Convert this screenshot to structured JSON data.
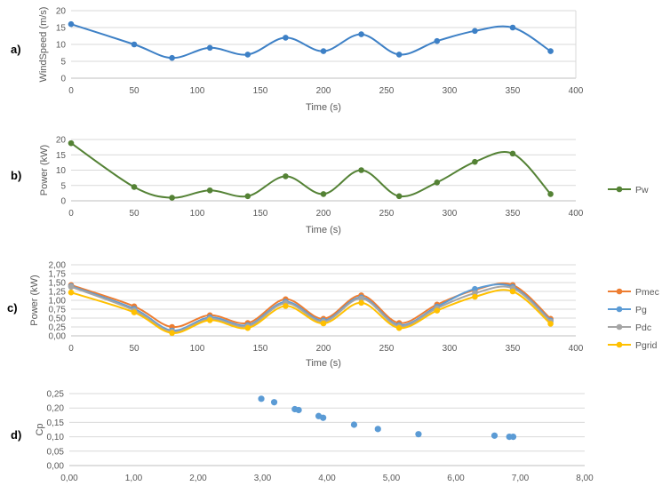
{
  "panel_labels": [
    "a)",
    "b)",
    "c)",
    "d)"
  ],
  "colors": {
    "blue": "#3d80c6",
    "green": "#548235",
    "orange": "#ed7d31",
    "lightblue": "#5b9bd5",
    "gray": "#a5a5a5",
    "yellow": "#ffc000",
    "grid": "#d9d9d9",
    "axis": "#bfbfbf",
    "text": "#595959"
  },
  "chart_data": [
    {
      "type": "line",
      "ylabel": "WindSpeed (m/s)",
      "xlabel": "Time (s)",
      "xlim": [
        0,
        400
      ],
      "ylim": [
        0,
        20
      ],
      "x_ticks": [
        "0",
        "50",
        "100",
        "150",
        "200",
        "250",
        "300",
        "350",
        "400"
      ],
      "y_ticks": [
        "0",
        "5",
        "10",
        "15",
        "20"
      ],
      "grid": true,
      "smooth": true,
      "x": [
        0,
        50,
        80,
        110,
        140,
        170,
        200,
        230,
        260,
        290,
        320,
        350,
        380
      ],
      "series": [
        {
          "values": [
            16,
            10,
            6,
            9,
            7,
            12,
            8,
            13,
            7,
            11,
            14,
            15,
            8
          ],
          "color": "#3d80c6"
        }
      ]
    },
    {
      "type": "line",
      "ylabel": "Power (kW)",
      "xlabel": "Time (s)",
      "xlim": [
        0,
        400
      ],
      "ylim": [
        0,
        20
      ],
      "x_ticks": [
        "0",
        "50",
        "100",
        "150",
        "200",
        "250",
        "300",
        "350",
        "400"
      ],
      "y_ticks": [
        "0",
        "5",
        "10",
        "15",
        "20"
      ],
      "grid": true,
      "smooth": true,
      "legend": "right",
      "x": [
        0,
        50,
        80,
        110,
        140,
        170,
        200,
        230,
        260,
        290,
        320,
        350,
        380
      ],
      "series": [
        {
          "name": "Pw",
          "values": [
            18.8,
            4.5,
            1.0,
            3.4,
            1.5,
            8.0,
            2.2,
            10.0,
            1.5,
            6.0,
            12.7,
            15.4,
            2.2
          ],
          "color": "#548235"
        }
      ]
    },
    {
      "type": "line",
      "ylabel": "Power (kW)",
      "xlabel": "Time (s)",
      "xlim": [
        0,
        400
      ],
      "ylim": [
        0,
        2
      ],
      "x_ticks": [
        "0",
        "50",
        "100",
        "150",
        "200",
        "250",
        "300",
        "350",
        "400"
      ],
      "y_ticks": [
        "0,00",
        "0,25",
        "0,50",
        "0,75",
        "1,00",
        "1,25",
        "1,50",
        "1,75",
        "2,00"
      ],
      "grid": true,
      "smooth": true,
      "legend": "right",
      "x": [
        0,
        50,
        80,
        110,
        140,
        170,
        200,
        230,
        260,
        290,
        320,
        350,
        380
      ],
      "series": [
        {
          "name": "Pmec",
          "values": [
            1.43,
            0.83,
            0.25,
            0.58,
            0.36,
            1.03,
            0.48,
            1.14,
            0.36,
            0.88,
            1.29,
            1.43,
            0.48
          ],
          "color": "#ed7d31"
        },
        {
          "name": "Pg",
          "values": [
            1.4,
            0.76,
            0.15,
            0.52,
            0.3,
            0.96,
            0.43,
            1.08,
            0.3,
            0.82,
            1.32,
            1.38,
            0.43
          ],
          "color": "#5b9bd5"
        },
        {
          "name": "Pdc",
          "values": [
            1.38,
            0.72,
            0.12,
            0.48,
            0.27,
            0.92,
            0.4,
            1.05,
            0.27,
            0.78,
            1.2,
            1.34,
            0.4
          ],
          "color": "#a5a5a5"
        },
        {
          "name": "Pgrid",
          "values": [
            1.22,
            0.66,
            0.08,
            0.44,
            0.22,
            0.84,
            0.35,
            0.93,
            0.22,
            0.71,
            1.1,
            1.25,
            0.34
          ],
          "color": "#ffc000"
        }
      ]
    },
    {
      "type": "scatter",
      "ylabel": "Cp",
      "xlabel": "",
      "xlim": [
        0,
        8
      ],
      "ylim": [
        0,
        0.25
      ],
      "x_ticks": [
        "0,00",
        "1,00",
        "2,00",
        "3,00",
        "4,00",
        "5,00",
        "6,00",
        "7,00",
        "8,00"
      ],
      "y_ticks": [
        "0,00",
        "0,05",
        "0,10",
        "0,15",
        "0,20",
        "0,25"
      ],
      "grid": true,
      "x": [
        2.98,
        3.18,
        3.5,
        3.56,
        3.87,
        3.94,
        4.42,
        4.79,
        5.42,
        6.6,
        6.83,
        6.89
      ],
      "series": [
        {
          "values": [
            0.232,
            0.22,
            0.196,
            0.193,
            0.172,
            0.166,
            0.142,
            0.127,
            0.109,
            0.104,
            0.1,
            0.1
          ],
          "color": "#5b9bd5"
        }
      ]
    }
  ]
}
